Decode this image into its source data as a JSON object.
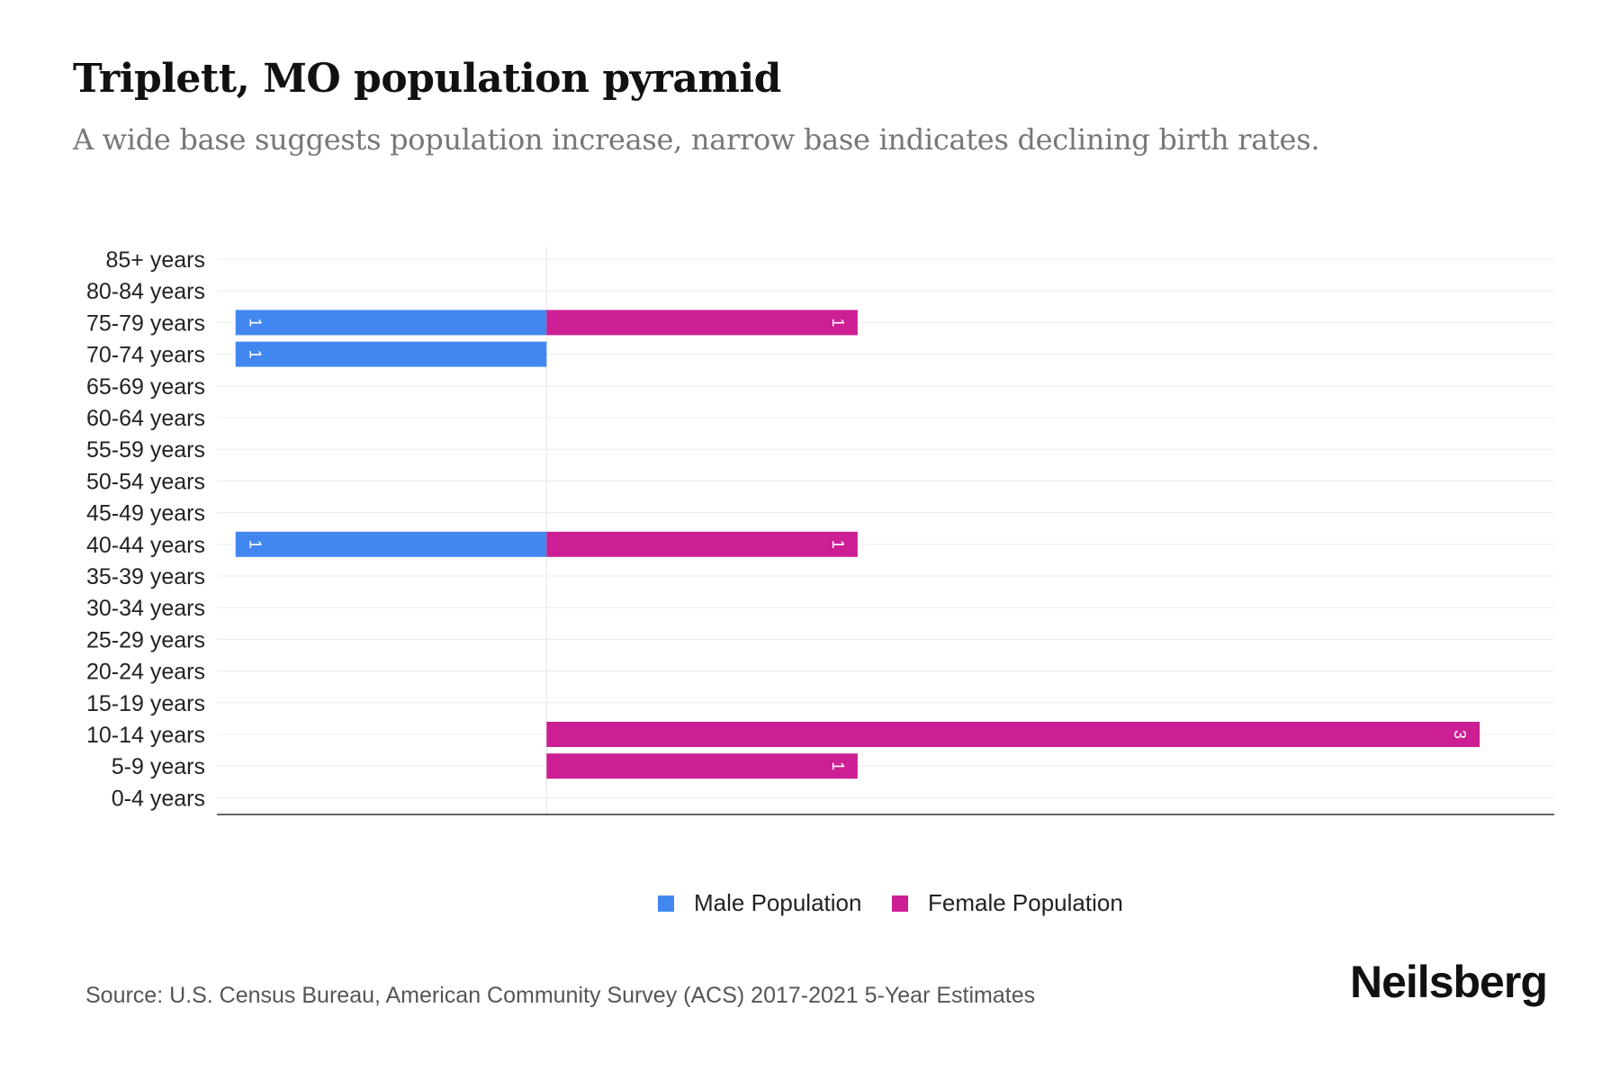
{
  "title": "Triplett, MO population pyramid",
  "subtitle": "A wide base suggests population increase, narrow base indicates declining birth rates.",
  "source": "Source: U.S. Census Bureau, American Community Survey (ACS) 2017-2021 5-Year Estimates",
  "logo": "Neilsberg",
  "colors": {
    "male": "#4287f0",
    "female": "#cc1f93"
  },
  "chart_data": {
    "type": "bar",
    "orientation": "horizontal-pyramid",
    "title": "Triplett, MO population pyramid",
    "categories": [
      "85+ years",
      "80-84 years",
      "75-79 years",
      "70-74 years",
      "65-69 years",
      "60-64 years",
      "55-59 years",
      "50-54 years",
      "45-49 years",
      "40-44 years",
      "35-39 years",
      "30-34 years",
      "25-29 years",
      "20-24 years",
      "15-19 years",
      "10-14 years",
      "5-9 years",
      "0-4 years"
    ],
    "series": [
      {
        "name": "Male Population",
        "values": [
          0,
          0,
          1,
          1,
          0,
          0,
          0,
          0,
          0,
          1,
          0,
          0,
          0,
          0,
          0,
          0,
          0,
          0
        ]
      },
      {
        "name": "Female Population",
        "values": [
          0,
          0,
          1,
          0,
          0,
          0,
          0,
          0,
          0,
          1,
          0,
          0,
          0,
          0,
          0,
          3,
          1,
          0
        ]
      }
    ],
    "xlim": [
      -1.06,
      3.24
    ],
    "grid": true,
    "legend": "bottom-center"
  }
}
